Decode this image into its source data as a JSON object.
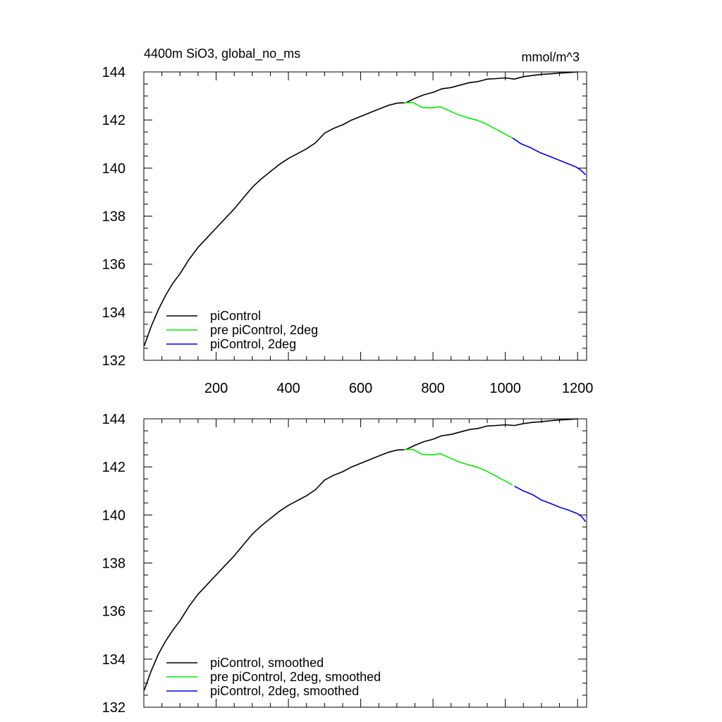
{
  "chart_data": [
    {
      "type": "line",
      "title": "4400m SiO3, global_no_ms",
      "units": "mmol/m^3",
      "xlim": [
        0,
        1225
      ],
      "ylim": [
        132,
        144
      ],
      "x_ticks": [
        200,
        400,
        600,
        800,
        1000,
        1200
      ],
      "x_tick_labels": [
        "200",
        "400",
        "600",
        "800",
        "1000",
        "1200"
      ],
      "y_ticks": [
        132,
        134,
        136,
        138,
        140,
        142,
        144
      ],
      "y_tick_labels": [
        "132",
        "134",
        "136",
        "138",
        "140",
        "142",
        "144"
      ],
      "legend_position": "bottom-left",
      "series": [
        {
          "name": "piControl",
          "color": "#000000",
          "x": [
            1,
            20,
            40,
            60,
            80,
            100,
            125,
            150,
            175,
            200,
            225,
            250,
            275,
            300,
            325,
            350,
            375,
            400,
            425,
            450,
            475,
            500,
            525,
            550,
            575,
            600,
            625,
            650,
            675,
            700,
            725,
            750,
            775,
            800,
            825,
            850,
            875,
            900,
            925,
            950,
            975,
            1000,
            1025,
            1050,
            1075,
            1100,
            1125,
            1150,
            1175,
            1200
          ],
          "y": [
            132.6,
            133.4,
            134.1,
            134.7,
            135.2,
            135.6,
            136.2,
            136.7,
            137.1,
            137.5,
            137.9,
            138.3,
            138.75,
            139.2,
            139.55,
            139.85,
            140.15,
            140.4,
            140.6,
            140.8,
            141.05,
            141.45,
            141.65,
            141.8,
            142.0,
            142.15,
            142.3,
            142.45,
            142.6,
            142.7,
            142.72,
            142.9,
            143.05,
            143.15,
            143.3,
            143.35,
            143.45,
            143.55,
            143.6,
            143.7,
            143.72,
            143.75,
            143.7,
            143.8,
            143.85,
            143.9,
            143.92,
            143.95,
            143.97,
            144.0
          ]
        },
        {
          "name": "pre piControl, 2deg",
          "color": "#00ee00",
          "x": [
            720,
            745,
            770,
            795,
            820,
            845,
            870,
            895,
            920,
            945,
            970,
            995,
            1020
          ],
          "y": [
            142.72,
            142.72,
            142.52,
            142.5,
            142.55,
            142.38,
            142.22,
            142.1,
            142.0,
            141.85,
            141.65,
            141.45,
            141.25
          ]
        },
        {
          "name": "piControl, 2deg",
          "color": "#0000ee",
          "x": [
            1020,
            1045,
            1070,
            1095,
            1120,
            1145,
            1170,
            1195,
            1210,
            1222
          ],
          "y": [
            141.25,
            141.0,
            140.85,
            140.65,
            140.5,
            140.35,
            140.2,
            140.05,
            139.9,
            139.72
          ]
        }
      ]
    },
    {
      "type": "line",
      "xlim": [
        0,
        1225
      ],
      "ylim": [
        132,
        144
      ],
      "x_ticks": [
        200,
        400,
        600,
        800,
        1000,
        1200
      ],
      "y_ticks": [
        132,
        134,
        136,
        138,
        140,
        142,
        144
      ],
      "y_tick_labels": [
        "132",
        "134",
        "136",
        "138",
        "140",
        "142",
        "144"
      ],
      "legend_position": "bottom-left",
      "series": [
        {
          "name": "piControl, smoothed",
          "color": "#000000",
          "x": [
            1,
            20,
            40,
            60,
            80,
            100,
            125,
            150,
            175,
            200,
            225,
            250,
            275,
            300,
            325,
            350,
            375,
            400,
            425,
            450,
            475,
            500,
            525,
            550,
            575,
            600,
            625,
            650,
            675,
            700,
            725,
            750,
            775,
            800,
            825,
            850,
            875,
            900,
            925,
            950,
            975,
            1000,
            1025,
            1050,
            1075,
            1100,
            1125,
            1150,
            1175,
            1200
          ],
          "y": [
            132.7,
            133.5,
            134.2,
            134.75,
            135.2,
            135.6,
            136.2,
            136.7,
            137.1,
            137.5,
            137.9,
            138.3,
            138.75,
            139.2,
            139.55,
            139.85,
            140.15,
            140.4,
            140.6,
            140.8,
            141.05,
            141.45,
            141.65,
            141.8,
            142.0,
            142.15,
            142.3,
            142.45,
            142.6,
            142.7,
            142.72,
            142.9,
            143.05,
            143.15,
            143.3,
            143.35,
            143.45,
            143.55,
            143.6,
            143.7,
            143.72,
            143.75,
            143.72,
            143.8,
            143.85,
            143.88,
            143.92,
            143.95,
            143.97,
            144.0
          ]
        },
        {
          "name": "pre piControl, 2deg, smoothed",
          "color": "#00ee00",
          "x": [
            720,
            745,
            770,
            795,
            820,
            845,
            870,
            895,
            920,
            945,
            970,
            995,
            1020
          ],
          "y": [
            142.72,
            142.72,
            142.52,
            142.5,
            142.55,
            142.38,
            142.22,
            142.1,
            142.0,
            141.85,
            141.65,
            141.45,
            141.25
          ]
        },
        {
          "name": "piControl, 2deg, smoothed",
          "color": "#0000ee",
          "x": [
            1025,
            1050,
            1075,
            1100,
            1125,
            1150,
            1175,
            1200,
            1212,
            1222
          ],
          "y": [
            141.2,
            141.0,
            140.85,
            140.62,
            140.48,
            140.32,
            140.2,
            140.05,
            139.92,
            139.72
          ]
        }
      ]
    }
  ]
}
